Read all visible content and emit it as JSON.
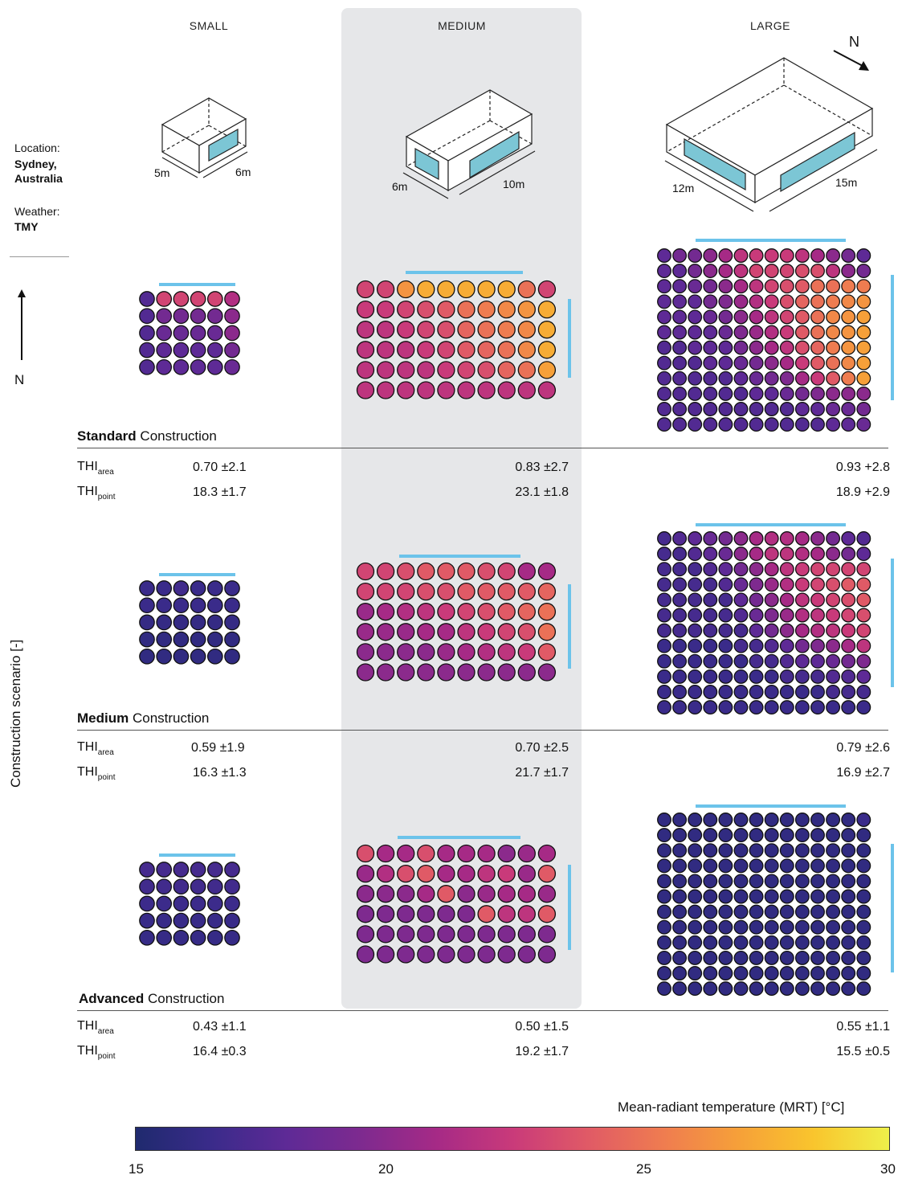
{
  "columns": {
    "small": "SMALL",
    "medium": "MEDIUM",
    "large": "LARGE"
  },
  "compass_large": "N",
  "sidebar": {
    "location_label": "Location:",
    "location_line1": "Sydney,",
    "location_line2": "Australia",
    "weather_label": "Weather:",
    "weather_value": "TMY",
    "north_label": "N"
  },
  "dims": {
    "small_a": "5m",
    "small_b": "6m",
    "medium_a": "6m",
    "medium_b": "10m",
    "large_a": "12m",
    "large_b": "15m"
  },
  "y_axis_label": "Construction scenario [-]",
  "scenarios": [
    {
      "bold": "Standard",
      "rest": " Construction",
      "thi_area": [
        "0.70 ±2.1",
        "0.83 ±2.7",
        "0.93 +2.8"
      ],
      "thi_point": [
        "18.3 ±1.7",
        "23.1 ±1.8",
        "18.9 +2.9"
      ]
    },
    {
      "bold": "Medium",
      "rest": " Construction",
      "thi_area": [
        "0.59 ±1.9",
        "0.70 ±2.5",
        "0.79 ±2.6"
      ],
      "thi_point": [
        "16.3 ±1.3",
        "21.7 ±1.7",
        "16.9 ±2.7"
      ]
    },
    {
      "bold": "Advanced",
      "rest": " Construction",
      "thi_area": [
        "0.43 ±1.1",
        "0.50 ±1.5",
        "0.55 ±1.1"
      ],
      "thi_point": [
        "16.4 ±0.3",
        "19.2 ±1.7",
        "15.5 ±0.5"
      ]
    }
  ],
  "thi_labels": {
    "main": "THI",
    "area_sub": "area",
    "point_sub": "point"
  },
  "colorbar": {
    "title": "Mean-radiant temperature (MRT) [°C]",
    "ticks": [
      "15",
      "20",
      "25",
      "30"
    ],
    "min": 15,
    "max": 30,
    "stops": [
      "#1f2a6e",
      "#3a2b8a",
      "#5e2a96",
      "#7e2a8f",
      "#a62a86",
      "#c93a7a",
      "#e05a66",
      "#ef7c50",
      "#f6a039",
      "#f9c52d",
      "#eef04a"
    ]
  },
  "grids": {
    "small": [
      [
        17.5,
        23.0,
        23.0,
        23.0,
        23.0,
        21.5
      ],
      [
        17.5,
        19.0,
        19.0,
        19.0,
        19.0,
        20.0
      ],
      [
        17.5,
        18.5,
        18.5,
        18.5,
        18.5,
        20.0
      ],
      [
        17.5,
        18.0,
        18.0,
        18.0,
        18.0,
        19.0
      ],
      [
        17.5,
        18.0,
        18.0,
        18.0,
        18.0,
        18.5
      ],
      [
        16.5,
        16.5,
        16.8,
        16.5,
        16.5,
        16.5
      ],
      [
        16.5,
        16.5,
        16.5,
        16.5,
        16.5,
        16.5
      ],
      [
        16.2,
        16.2,
        16.2,
        16.2,
        16.2,
        16.2
      ],
      [
        16.0,
        16.0,
        16.0,
        16.0,
        16.0,
        16.0
      ],
      [
        16.0,
        16.0,
        16.0,
        16.0,
        16.0,
        16.0
      ],
      [
        17.0,
        17.0,
        17.0,
        17.0,
        17.0,
        17.0
      ],
      [
        16.8,
        16.8,
        16.8,
        16.8,
        16.8,
        16.8
      ],
      [
        16.6,
        16.6,
        16.6,
        16.6,
        16.6,
        16.6
      ],
      [
        16.4,
        16.4,
        16.4,
        16.4,
        16.4,
        16.4
      ],
      [
        16.3,
        16.3,
        16.3,
        16.3,
        16.3,
        16.3
      ]
    ],
    "medium": [
      [
        23.0,
        23.0,
        26.5,
        27.5,
        27.5,
        27.5,
        27.5,
        27.5,
        25.0,
        23.0
      ],
      [
        22.5,
        22.5,
        23.0,
        23.5,
        24.0,
        25.0,
        25.5,
        26.0,
        26.5,
        27.5
      ],
      [
        22.0,
        22.0,
        22.5,
        23.0,
        23.5,
        24.5,
        25.0,
        25.5,
        26.0,
        27.5
      ],
      [
        22.0,
        22.0,
        22.0,
        22.5,
        23.0,
        24.0,
        24.5,
        25.0,
        26.0,
        27.5
      ],
      [
        22.0,
        22.0,
        22.0,
        22.0,
        22.5,
        23.0,
        23.5,
        24.5,
        25.0,
        27.0
      ],
      [
        22.0,
        22.0,
        22.0,
        22.0,
        22.0,
        22.0,
        22.0,
        22.0,
        22.0,
        22.0
      ],
      [
        23.0,
        23.0,
        23.5,
        24.0,
        24.0,
        24.0,
        23.5,
        23.0,
        21.0,
        21.0
      ],
      [
        23.0,
        23.0,
        23.0,
        23.5,
        23.5,
        24.0,
        24.0,
        24.0,
        24.0,
        24.5
      ],
      [
        20.5,
        21.0,
        21.5,
        22.0,
        22.5,
        23.0,
        23.5,
        24.0,
        24.5,
        25.0
      ],
      [
        20.5,
        20.5,
        20.5,
        21.0,
        21.0,
        22.0,
        22.5,
        23.0,
        23.5,
        25.0
      ],
      [
        20.0,
        20.0,
        20.0,
        20.0,
        20.5,
        21.0,
        21.5,
        22.0,
        22.5,
        24.0
      ],
      [
        20.0,
        20.0,
        20.0,
        20.0,
        20.0,
        20.0,
        20.0,
        20.0,
        20.0,
        20.0
      ],
      [
        23.5,
        21.0,
        21.0,
        23.5,
        21.0,
        21.0,
        21.0,
        20.0,
        20.5,
        21.0
      ],
      [
        20.5,
        21.5,
        23.5,
        24.0,
        21.0,
        21.0,
        22.0,
        22.5,
        20.5,
        24.0
      ],
      [
        20.0,
        20.0,
        20.0,
        21.0,
        24.0,
        20.0,
        20.5,
        21.0,
        21.0,
        20.5
      ],
      [
        19.5,
        19.5,
        19.5,
        19.5,
        19.5,
        19.5,
        24.0,
        22.0,
        22.0,
        24.0
      ],
      [
        19.5,
        19.5,
        19.5,
        19.5,
        19.5,
        19.5,
        19.5,
        19.5,
        19.5,
        19.5
      ],
      [
        19.5,
        19.5,
        19.5,
        19.5,
        19.5,
        19.5,
        19.5,
        19.5,
        19.5,
        19.5
      ]
    ],
    "large": [
      [
        18,
        19,
        19,
        20,
        21,
        22,
        22.5,
        22.5,
        22.5,
        22,
        21,
        20,
        19,
        18
      ],
      [
        18,
        18,
        19,
        20,
        21,
        22,
        23,
        23,
        23,
        23.5,
        23.5,
        22,
        20,
        19
      ],
      [
        18,
        18,
        18.5,
        19,
        20,
        21,
        22,
        23,
        23.5,
        24,
        25,
        25,
        25.5,
        25.5
      ],
      [
        18,
        18,
        18,
        19,
        19.5,
        20.5,
        21.5,
        22.5,
        23.5,
        24.5,
        25,
        25.5,
        26,
        26.5
      ],
      [
        18,
        18,
        18,
        18.5,
        19,
        20,
        21,
        22,
        23,
        24,
        25,
        26,
        26.5,
        27
      ],
      [
        18,
        18,
        18,
        18,
        18.5,
        19.5,
        20.5,
        21.5,
        22.5,
        24,
        25,
        26,
        26.5,
        27
      ],
      [
        17.5,
        17.5,
        18,
        18,
        18,
        19,
        20,
        21,
        22,
        23.5,
        24.5,
        25.5,
        26.5,
        27
      ],
      [
        17.5,
        17.5,
        17.5,
        18,
        18,
        18.5,
        19,
        20,
        21,
        22.5,
        24,
        25,
        26,
        27
      ],
      [
        17.5,
        17.5,
        17.5,
        17.5,
        17.5,
        18,
        18.5,
        19,
        19.5,
        21,
        22.5,
        24,
        25.5,
        27
      ],
      [
        17.5,
        17.5,
        17.5,
        17.5,
        17.5,
        17.5,
        18,
        18,
        18.5,
        19,
        19.5,
        20,
        20,
        20
      ],
      [
        17.5,
        17.5,
        17.5,
        17.5,
        17.5,
        17.5,
        17.5,
        17.5,
        17.5,
        18,
        18,
        18.5,
        18.5,
        19
      ],
      [
        17.5,
        17.5,
        17.5,
        17.5,
        17.5,
        17.5,
        17.5,
        17.5,
        17.5,
        17.5,
        17.5,
        18,
        18,
        18.5
      ],
      [
        17,
        17.5,
        18,
        18.5,
        19,
        20,
        21,
        21.5,
        21.5,
        21,
        20,
        19,
        18,
        17.5
      ],
      [
        17,
        17,
        17.5,
        18,
        18.5,
        20,
        21,
        22,
        22,
        21.5,
        21,
        20,
        19,
        18
      ],
      [
        17,
        17,
        17,
        17.5,
        18,
        19,
        20,
        21,
        22,
        22.5,
        23,
        23,
        23,
        23
      ],
      [
        17,
        17,
        17,
        17,
        17.5,
        18.5,
        19.5,
        20.5,
        21.5,
        22.5,
        23,
        23.5,
        24,
        24
      ],
      [
        17,
        17,
        17,
        17,
        17,
        18,
        19,
        20,
        21,
        22,
        22.5,
        23,
        23.5,
        24
      ],
      [
        17,
        17,
        17,
        17,
        17,
        17.5,
        18.5,
        19.5,
        20.5,
        21.5,
        22,
        22.5,
        23,
        23.5
      ],
      [
        17,
        17,
        17,
        17,
        17,
        17,
        18,
        19,
        20,
        21,
        21.5,
        22,
        22.5,
        23
      ],
      [
        16.5,
        16.5,
        16.5,
        16.5,
        16.5,
        17,
        17,
        17.5,
        18,
        19,
        19.5,
        20,
        21,
        22
      ],
      [
        16.5,
        16.5,
        16.5,
        16.5,
        16.5,
        16.5,
        17,
        17,
        17.5,
        18,
        18,
        18.5,
        19,
        19.5
      ],
      [
        16.5,
        16.5,
        16.5,
        16.5,
        16.5,
        16.5,
        16.5,
        16.5,
        17,
        17,
        17,
        17.5,
        17.5,
        18
      ],
      [
        16.5,
        16.5,
        16.5,
        16.5,
        16.5,
        16.5,
        16.5,
        16.5,
        16.5,
        16.5,
        16.5,
        17,
        17,
        17
      ],
      [
        16.5,
        16.5,
        16.5,
        16.5,
        16.5,
        16.5,
        16.5,
        16.5,
        16.5,
        16.5,
        16.5,
        16.5,
        16.5,
        16.5
      ],
      [
        16,
        16,
        16,
        16,
        16,
        16,
        16,
        16,
        16,
        16,
        16,
        16,
        16,
        16.5
      ],
      [
        16,
        16,
        16,
        16,
        16,
        16,
        16,
        16,
        16,
        16,
        16,
        16,
        16,
        16
      ],
      [
        16,
        16,
        16,
        16,
        16,
        16,
        16,
        16,
        16,
        16,
        16,
        16,
        16,
        16
      ],
      [
        16,
        16,
        16,
        16,
        16,
        16,
        16,
        16,
        16,
        16,
        16,
        16,
        16,
        16
      ],
      [
        16,
        16,
        16,
        16,
        16,
        16,
        16,
        16,
        16,
        16,
        16,
        16,
        16,
        16
      ],
      [
        16,
        16,
        16,
        16,
        16,
        16,
        16,
        16,
        16,
        16,
        16,
        16,
        16,
        16
      ],
      [
        16,
        16,
        16,
        16,
        16,
        16,
        16,
        16,
        16,
        16,
        16,
        16,
        16,
        16
      ],
      [
        16,
        16,
        16,
        16,
        16,
        16,
        16,
        16,
        16,
        16,
        16,
        16,
        16,
        16
      ],
      [
        16,
        16,
        16,
        16,
        16,
        16,
        16,
        16,
        16,
        16,
        16,
        16,
        16,
        16
      ],
      [
        16,
        16,
        16,
        16,
        16,
        16,
        16,
        16,
        16,
        16,
        16,
        16,
        16,
        16
      ],
      [
        16,
        16,
        16,
        16,
        16,
        16,
        16,
        16,
        16,
        16,
        16,
        16,
        16,
        16
      ],
      [
        16,
        16,
        16,
        16,
        16,
        16,
        16,
        16,
        16,
        16,
        16,
        16,
        16,
        16
      ]
    ]
  },
  "colors": {
    "window_line": "#6cc3ea",
    "medium_band": "#e6e7e9"
  }
}
